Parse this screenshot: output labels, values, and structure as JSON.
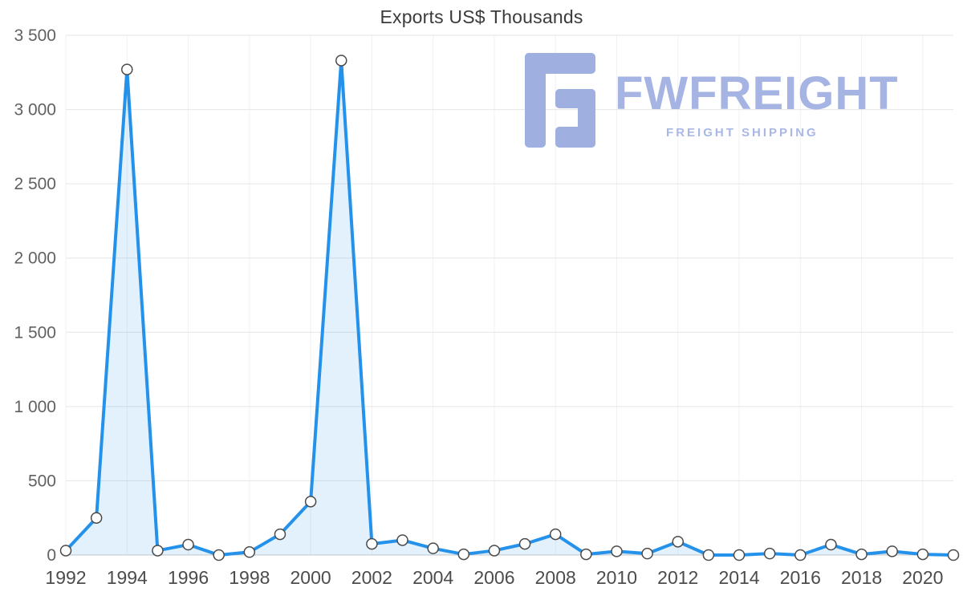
{
  "title": "Exports US$ Thousands",
  "logo": {
    "name": "FWFREIGHT",
    "subtitle": "FREIGHT SHIPPING",
    "color": "#a5b4e3"
  },
  "chart_data": {
    "type": "area",
    "title": "Exports US$ Thousands",
    "xlabel": "",
    "ylabel": "Exports US$ Thousands",
    "x": [
      1992,
      1993,
      1994,
      1995,
      1996,
      1997,
      1998,
      1999,
      2000,
      2001,
      2002,
      2003,
      2004,
      2005,
      2006,
      2007,
      2008,
      2009,
      2010,
      2011,
      2012,
      2013,
      2014,
      2015,
      2016,
      2017,
      2018,
      2019,
      2020,
      2021
    ],
    "series": [
      {
        "name": "Exports US$ Thousands",
        "values": [
          30,
          250,
          3270,
          30,
          70,
          0,
          20,
          140,
          360,
          3330,
          75,
          100,
          45,
          5,
          30,
          75,
          140,
          5,
          25,
          10,
          90,
          0,
          0,
          10,
          0,
          70,
          5,
          25,
          5,
          0
        ]
      }
    ],
    "ylim": [
      0,
      3500
    ],
    "ytick_step": 500,
    "xtick_step": 2,
    "grid": true,
    "legend": "none",
    "line_color": "#2492eb",
    "fill_color": "rgba(36,146,235,0.13)",
    "marker_fill": "#ffffff",
    "marker_stroke": "#4a4a4a",
    "grid_color": "#e6e6e6",
    "vgrid_color": "#f1f1f1",
    "baseline_color": "#c9c9c9"
  }
}
